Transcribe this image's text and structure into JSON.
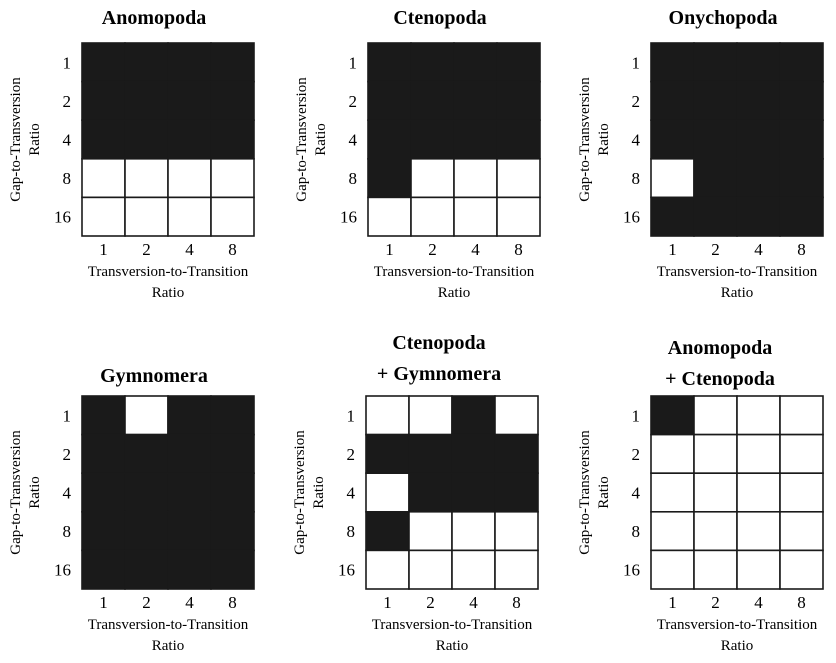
{
  "chart_data": [
    {
      "type": "heatmap",
      "title": [
        "Anomopoda"
      ],
      "xlabel": [
        "Transversion-to-Transition",
        "Ratio"
      ],
      "ylabel": [
        "Gap-to-Transversion",
        "Ratio"
      ],
      "x_categories": [
        "1",
        "2",
        "4",
        "8"
      ],
      "y_categories": [
        "1",
        "2",
        "4",
        "8",
        "16"
      ],
      "legend": "none",
      "colors": {
        "1": "#1a1a1a",
        "0": "#ffffff"
      },
      "values": [
        [
          1,
          1,
          1,
          1
        ],
        [
          1,
          1,
          1,
          1
        ],
        [
          1,
          1,
          1,
          1
        ],
        [
          0,
          0,
          0,
          0
        ],
        [
          0,
          0,
          0,
          0
        ]
      ]
    },
    {
      "type": "heatmap",
      "title": [
        "Ctenopoda"
      ],
      "xlabel": [
        "Transversion-to-Transition",
        "Ratio"
      ],
      "ylabel": [
        "Gap-to-Transversion",
        "Ratio"
      ],
      "x_categories": [
        "1",
        "2",
        "4",
        "8"
      ],
      "y_categories": [
        "1",
        "2",
        "4",
        "8",
        "16"
      ],
      "legend": "none",
      "colors": {
        "1": "#1a1a1a",
        "0": "#ffffff"
      },
      "values": [
        [
          1,
          1,
          1,
          1
        ],
        [
          1,
          1,
          1,
          1
        ],
        [
          1,
          1,
          1,
          1
        ],
        [
          1,
          0,
          0,
          0
        ],
        [
          0,
          0,
          0,
          0
        ]
      ]
    },
    {
      "type": "heatmap",
      "title": [
        "Onychopoda"
      ],
      "xlabel": [
        "Transversion-to-Transition",
        "Ratio"
      ],
      "ylabel": [
        "Gap-to-Transversion",
        "Ratio"
      ],
      "x_categories": [
        "1",
        "2",
        "4",
        "8"
      ],
      "y_categories": [
        "1",
        "2",
        "4",
        "8",
        "16"
      ],
      "legend": "none",
      "colors": {
        "1": "#1a1a1a",
        "0": "#ffffff"
      },
      "values": [
        [
          1,
          1,
          1,
          1
        ],
        [
          1,
          1,
          1,
          1
        ],
        [
          1,
          1,
          1,
          1
        ],
        [
          0,
          1,
          1,
          1
        ],
        [
          1,
          1,
          1,
          1
        ]
      ]
    },
    {
      "type": "heatmap",
      "title": [
        "Gymnomera"
      ],
      "xlabel": [
        "Transversion-to-Transition",
        "Ratio"
      ],
      "ylabel": [
        "Gap-to-Transversion",
        "Ratio"
      ],
      "x_categories": [
        "1",
        "2",
        "4",
        "8"
      ],
      "y_categories": [
        "1",
        "2",
        "4",
        "8",
        "16"
      ],
      "legend": "none",
      "colors": {
        "1": "#1a1a1a",
        "0": "#ffffff"
      },
      "values": [
        [
          1,
          0,
          1,
          1
        ],
        [
          1,
          1,
          1,
          1
        ],
        [
          1,
          1,
          1,
          1
        ],
        [
          1,
          1,
          1,
          1
        ],
        [
          1,
          1,
          1,
          1
        ]
      ]
    },
    {
      "type": "heatmap",
      "title": [
        "Ctenopoda",
        "+ Gymnomera"
      ],
      "xlabel": [
        "Transversion-to-Transition",
        "Ratio"
      ],
      "ylabel": [
        "Gap-to-Transversion",
        "Ratio"
      ],
      "x_categories": [
        "1",
        "2",
        "4",
        "8"
      ],
      "y_categories": [
        "1",
        "2",
        "4",
        "8",
        "16"
      ],
      "legend": "none",
      "colors": {
        "1": "#1a1a1a",
        "0": "#ffffff"
      },
      "values": [
        [
          0,
          0,
          1,
          0
        ],
        [
          1,
          1,
          1,
          1
        ],
        [
          0,
          1,
          1,
          1
        ],
        [
          1,
          0,
          0,
          0
        ],
        [
          0,
          0,
          0,
          0
        ]
      ]
    },
    {
      "type": "heatmap",
      "title": [
        "Anomopoda",
        "+ Ctenopoda"
      ],
      "xlabel": [
        "Transversion-to-Transition",
        "Ratio"
      ],
      "ylabel": [
        "Gap-to-Transversion",
        "Ratio"
      ],
      "x_categories": [
        "1",
        "2",
        "4",
        "8"
      ],
      "y_categories": [
        "1",
        "2",
        "4",
        "8",
        "16"
      ],
      "legend": "none",
      "colors": {
        "1": "#1a1a1a",
        "0": "#ffffff"
      },
      "values": [
        [
          1,
          0,
          0,
          0
        ],
        [
          0,
          0,
          0,
          0
        ],
        [
          0,
          0,
          0,
          0
        ],
        [
          0,
          0,
          0,
          0
        ],
        [
          0,
          0,
          0,
          0
        ]
      ]
    }
  ]
}
